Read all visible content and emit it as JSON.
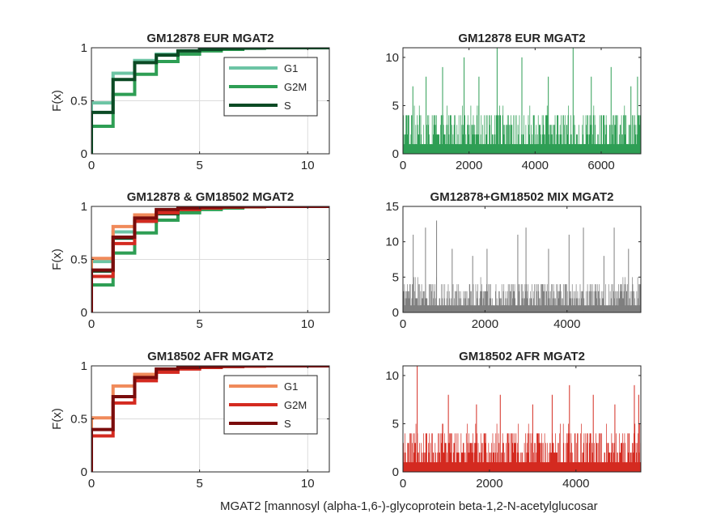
{
  "figure": {
    "xlabel": "MGAT2 [mannosyl (alpha-1,6-)-glycoprotein beta-1,2-N-acetylglucosar"
  },
  "chart_data": [
    {
      "type": "line",
      "subtype": "ecdf",
      "title": "GM12878 EUR MGAT2",
      "xlabel": "",
      "ylabel": "F(x)",
      "xlim": [
        0,
        11
      ],
      "ylim": [
        0,
        1
      ],
      "xticks": [
        "0",
        "5",
        "10"
      ],
      "yticks": [
        "0",
        "0.5",
        "1"
      ],
      "legend": {
        "position": "top-right",
        "visible": true
      },
      "series": [
        {
          "name": "G1",
          "color": "#6cc4a4",
          "x": [
            0,
            1,
            2,
            3,
            4,
            5,
            6,
            7,
            8,
            11
          ],
          "y": [
            0.48,
            0.76,
            0.88,
            0.94,
            0.97,
            0.985,
            0.993,
            0.997,
            1,
            1
          ]
        },
        {
          "name": "G2M",
          "color": "#2e9e54",
          "x": [
            0,
            1,
            2,
            3,
            4,
            5,
            6,
            7,
            8,
            11
          ],
          "y": [
            0.26,
            0.56,
            0.75,
            0.87,
            0.94,
            0.97,
            0.985,
            0.995,
            1,
            1
          ]
        },
        {
          "name": "S",
          "color": "#0b4a24",
          "x": [
            0,
            1,
            2,
            3,
            4,
            5,
            6,
            7,
            8,
            11
          ],
          "y": [
            0.39,
            0.7,
            0.86,
            0.93,
            0.97,
            0.985,
            0.993,
            0.997,
            1,
            1
          ]
        }
      ]
    },
    {
      "type": "bar",
      "subtype": "spike-train",
      "title": "GM12878 EUR MGAT2",
      "xlim": [
        0,
        7200
      ],
      "ylim": [
        0,
        11
      ],
      "xticks": [
        "0",
        "2000",
        "4000",
        "6000"
      ],
      "yticks": [
        "0",
        "5",
        "10"
      ],
      "color": "#2e9e54",
      "n": 7200,
      "base_max": 4,
      "peaks": [
        {
          "x": 300,
          "y": 7
        },
        {
          "x": 700,
          "y": 8
        },
        {
          "x": 1200,
          "y": 9
        },
        {
          "x": 1850,
          "y": 10
        },
        {
          "x": 2300,
          "y": 8
        },
        {
          "x": 2850,
          "y": 11
        },
        {
          "x": 3600,
          "y": 10
        },
        {
          "x": 4400,
          "y": 8
        },
        {
          "x": 5150,
          "y": 11
        },
        {
          "x": 5700,
          "y": 8
        },
        {
          "x": 6300,
          "y": 9
        },
        {
          "x": 6900,
          "y": 7
        },
        {
          "x": 7100,
          "y": 8
        }
      ]
    },
    {
      "type": "line",
      "subtype": "ecdf",
      "title": "GM12878 & GM18502 MGAT2",
      "xlabel": "",
      "ylabel": "F(x)",
      "xlim": [
        0,
        11
      ],
      "ylim": [
        0,
        1
      ],
      "xticks": [
        "0",
        "5",
        "10"
      ],
      "yticks": [
        "0",
        "0.5",
        "1"
      ],
      "legend": {
        "visible": false
      },
      "series": [
        {
          "name": "",
          "color": "#6cc4a4",
          "x": [
            0,
            1,
            2,
            3,
            4,
            5,
            6,
            7,
            8,
            11
          ],
          "y": [
            0.48,
            0.76,
            0.88,
            0.94,
            0.97,
            0.985,
            0.993,
            0.997,
            1,
            1
          ]
        },
        {
          "name": "",
          "color": "#2e9e54",
          "x": [
            0,
            1,
            2,
            3,
            4,
            5,
            6,
            7,
            8,
            11
          ],
          "y": [
            0.26,
            0.56,
            0.75,
            0.87,
            0.94,
            0.97,
            0.985,
            0.995,
            1,
            1
          ]
        },
        {
          "name": "",
          "color": "#0b4a24",
          "x": [
            0,
            1,
            2,
            3,
            4,
            5,
            6,
            7,
            8,
            11
          ],
          "y": [
            0.39,
            0.7,
            0.86,
            0.93,
            0.97,
            0.985,
            0.993,
            0.997,
            1,
            1
          ]
        },
        {
          "name": "",
          "color": "#f08a5a",
          "x": [
            0,
            1,
            2,
            3,
            4,
            5,
            6,
            7,
            8,
            11
          ],
          "y": [
            0.51,
            0.81,
            0.92,
            0.96,
            0.98,
            0.99,
            0.995,
            0.998,
            1,
            1
          ]
        },
        {
          "name": "",
          "color": "#d42a20",
          "x": [
            0,
            1,
            2,
            3,
            4,
            5,
            6,
            7,
            8,
            11
          ],
          "y": [
            0.34,
            0.65,
            0.86,
            0.94,
            0.97,
            0.985,
            0.993,
            0.997,
            1,
            1
          ]
        },
        {
          "name": "",
          "color": "#7a0c0c",
          "x": [
            0,
            1,
            2,
            3,
            4,
            5,
            6,
            7,
            8,
            11
          ],
          "y": [
            0.4,
            0.71,
            0.89,
            0.97,
            0.985,
            0.993,
            0.997,
            1,
            1,
            1
          ]
        }
      ]
    },
    {
      "type": "bar",
      "subtype": "spike-train",
      "title": "GM12878+GM18502 MIX MGAT2",
      "xlim": [
        0,
        5800
      ],
      "ylim": [
        0,
        15
      ],
      "xticks": [
        "0",
        "2000",
        "4000"
      ],
      "yticks": [
        "0",
        "5",
        "10",
        "15"
      ],
      "color": "#7f7f7f",
      "n": 5800,
      "base_max": 4,
      "peaks": [
        {
          "x": 250,
          "y": 11
        },
        {
          "x": 550,
          "y": 12
        },
        {
          "x": 820,
          "y": 13
        },
        {
          "x": 1200,
          "y": 9
        },
        {
          "x": 1700,
          "y": 8
        },
        {
          "x": 2050,
          "y": 9
        },
        {
          "x": 2800,
          "y": 11
        },
        {
          "x": 3000,
          "y": 12
        },
        {
          "x": 3550,
          "y": 9
        },
        {
          "x": 4050,
          "y": 11
        },
        {
          "x": 4400,
          "y": 12
        },
        {
          "x": 4900,
          "y": 8
        },
        {
          "x": 5150,
          "y": 12
        },
        {
          "x": 5500,
          "y": 9
        }
      ]
    },
    {
      "type": "line",
      "subtype": "ecdf",
      "title": "GM18502 AFR MGAT2",
      "xlabel": "",
      "ylabel": "F(x)",
      "xlim": [
        0,
        11
      ],
      "ylim": [
        0,
        1
      ],
      "xticks": [
        "0",
        "5",
        "10"
      ],
      "yticks": [
        "0",
        "0.5",
        "1"
      ],
      "legend": {
        "position": "top-right",
        "visible": true
      },
      "series": [
        {
          "name": "G1",
          "color": "#f08a5a",
          "x": [
            0,
            1,
            2,
            3,
            4,
            5,
            6,
            7,
            8,
            11
          ],
          "y": [
            0.51,
            0.81,
            0.92,
            0.96,
            0.98,
            0.99,
            0.995,
            0.998,
            1,
            1
          ]
        },
        {
          "name": "G2M",
          "color": "#d42a20",
          "x": [
            0,
            1,
            2,
            3,
            4,
            5,
            6,
            7,
            8,
            11
          ],
          "y": [
            0.34,
            0.65,
            0.86,
            0.94,
            0.97,
            0.985,
            0.993,
            0.997,
            1,
            1
          ]
        },
        {
          "name": "S",
          "color": "#7a0c0c",
          "x": [
            0,
            1,
            2,
            3,
            4,
            5,
            6,
            7,
            8,
            11
          ],
          "y": [
            0.4,
            0.71,
            0.89,
            0.97,
            0.985,
            0.993,
            0.997,
            1,
            1,
            1
          ]
        }
      ]
    },
    {
      "type": "bar",
      "subtype": "spike-train",
      "title": "GM18502 AFR MGAT2",
      "xlim": [
        0,
        5500
      ],
      "ylim": [
        0,
        11
      ],
      "xticks": [
        "0",
        "2000",
        "4000"
      ],
      "yticks": [
        "0",
        "5",
        "10"
      ],
      "color": "#d42a20",
      "n": 5500,
      "base_max": 4,
      "peaks": [
        {
          "x": 330,
          "y": 11
        },
        {
          "x": 1050,
          "y": 8
        },
        {
          "x": 1700,
          "y": 7
        },
        {
          "x": 2250,
          "y": 8
        },
        {
          "x": 3000,
          "y": 7
        },
        {
          "x": 3450,
          "y": 8
        },
        {
          "x": 3850,
          "y": 9
        },
        {
          "x": 4400,
          "y": 8
        },
        {
          "x": 4900,
          "y": 7
        },
        {
          "x": 5350,
          "y": 9
        },
        {
          "x": 5450,
          "y": 8
        }
      ]
    }
  ]
}
